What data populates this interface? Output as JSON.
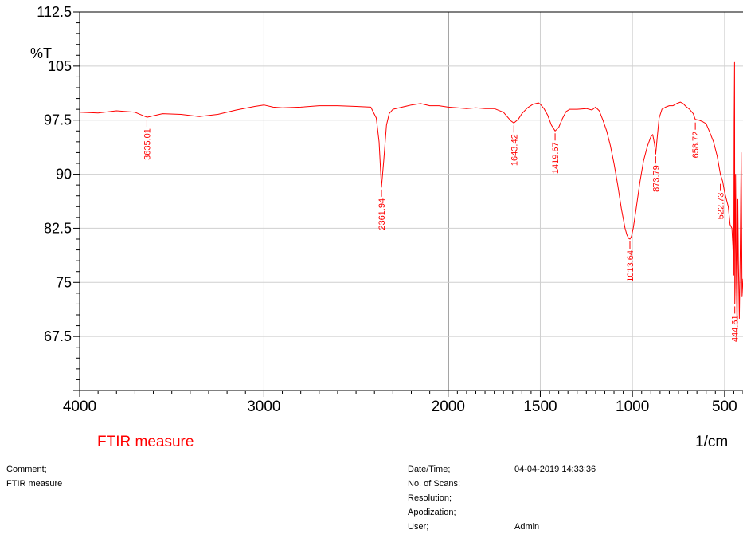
{
  "chart_data": {
    "type": "line",
    "title": "",
    "ylabel": "%T",
    "xlabel": "1/cm",
    "x_reversed": true,
    "xlim": [
      4000,
      400
    ],
    "ylim": [
      60,
      112.5
    ],
    "x_ticks": [
      {
        "value": 4000,
        "label": "4000"
      },
      {
        "value": 3000,
        "label": "3000"
      },
      {
        "value": 2000,
        "label": "2000"
      },
      {
        "value": 1500,
        "label": "1500"
      },
      {
        "value": 1000,
        "label": "1000"
      },
      {
        "value": 500,
        "label": "500"
      }
    ],
    "y_ticks": [
      {
        "value": 112.5,
        "label": "112.5"
      },
      {
        "value": 105,
        "label": "105"
      },
      {
        "value": 97.5,
        "label": "97.5"
      },
      {
        "value": 90,
        "label": "90"
      },
      {
        "value": 82.5,
        "label": "82.5"
      },
      {
        "value": 75,
        "label": "75"
      },
      {
        "value": 67.5,
        "label": "67.5"
      }
    ],
    "series": [
      {
        "name": "FTIR measure",
        "color": "#ff0000",
        "x": [
          4000,
          3900,
          3800,
          3700,
          3635,
          3550,
          3450,
          3350,
          3250,
          3150,
          3050,
          3000,
          2950,
          2900,
          2800,
          2700,
          2600,
          2500,
          2420,
          2390,
          2375,
          2361.94,
          2350,
          2335,
          2320,
          2300,
          2250,
          2200,
          2150,
          2100,
          2050,
          2000,
          1950,
          1900,
          1850,
          1800,
          1750,
          1700,
          1680,
          1660,
          1643.42,
          1620,
          1600,
          1570,
          1540,
          1510,
          1500,
          1480,
          1460,
          1440,
          1419.67,
          1400,
          1380,
          1360,
          1340,
          1300,
          1250,
          1220,
          1200,
          1180,
          1160,
          1140,
          1120,
          1100,
          1080,
          1060,
          1040,
          1030,
          1020,
          1013.64,
          1005,
          995,
          980,
          960,
          940,
          920,
          900,
          890,
          880,
          873.79,
          865,
          855,
          840,
          820,
          800,
          780,
          760,
          740,
          725,
          710,
          690,
          670,
          658.72,
          640,
          620,
          600,
          580,
          560,
          540,
          522.73,
          510,
          500,
          490,
          480,
          470,
          460,
          455,
          450,
          448,
          446,
          444.61,
          443,
          440,
          436,
          432,
          428,
          425,
          420,
          415,
          410,
          405,
          400
        ],
        "y": [
          98.6,
          98.5,
          98.8,
          98.6,
          97.9,
          98.4,
          98.3,
          98.0,
          98.3,
          98.9,
          99.4,
          99.6,
          99.3,
          99.2,
          99.3,
          99.5,
          99.5,
          99.4,
          99.3,
          97.8,
          94.5,
          88.2,
          91.8,
          96.8,
          98.4,
          99.0,
          99.3,
          99.6,
          99.8,
          99.5,
          99.5,
          99.3,
          99.2,
          99.1,
          99.2,
          99.1,
          99.1,
          98.6,
          98.0,
          97.4,
          97.1,
          97.6,
          98.4,
          99.2,
          99.7,
          99.9,
          99.7,
          99.1,
          98.2,
          96.8,
          96.0,
          96.5,
          97.7,
          98.7,
          99.0,
          99.0,
          99.1,
          98.9,
          99.3,
          98.8,
          97.5,
          96.0,
          94.0,
          91.5,
          88.5,
          85.2,
          82.5,
          81.6,
          81.1,
          81.0,
          81.4,
          82.6,
          85.2,
          88.8,
          91.8,
          93.8,
          95.2,
          95.5,
          94.2,
          92.8,
          95.2,
          97.8,
          99.0,
          99.3,
          99.5,
          99.5,
          99.8,
          100.0,
          99.8,
          99.4,
          99.0,
          98.4,
          97.6,
          97.5,
          97.3,
          97.0,
          95.8,
          94.5,
          92.5,
          90.0,
          89.0,
          87.5,
          86.5,
          85.5,
          83.0,
          82.5,
          80.0,
          76.0,
          97.0,
          105.5,
          72.0,
          74.5,
          90.0,
          75.5,
          68.0,
          86.5,
          78.0,
          70.0,
          79.0,
          93.0,
          73.0,
          75.5
        ]
      }
    ],
    "peak_labels": [
      {
        "x": 3635.01,
        "y": 97.9,
        "label": "3635.01"
      },
      {
        "x": 2361.94,
        "y": 88.2,
        "label": "2361.94"
      },
      {
        "x": 1643.42,
        "y": 97.1,
        "label": "1643.42"
      },
      {
        "x": 1419.67,
        "y": 96.0,
        "label": "1419.67"
      },
      {
        "x": 1013.64,
        "y": 81.0,
        "label": "1013.64"
      },
      {
        "x": 873.79,
        "y": 92.8,
        "label": "873.79"
      },
      {
        "x": 658.72,
        "y": 97.5,
        "label": "658.72"
      },
      {
        "x": 522.73,
        "y": 89.0,
        "label": "522.73"
      },
      {
        "x": 444.61,
        "y": 72.0,
        "label": "444.61"
      }
    ],
    "grid": true,
    "legend": "FTIR measure",
    "legend_position": "bottom-left"
  },
  "comment": {
    "label": "Comment;",
    "value": "FTIR measure"
  },
  "info": [
    {
      "label": "Date/Time;",
      "value": "04-04-2019 14:33:36"
    },
    {
      "label": "No. of Scans;",
      "value": ""
    },
    {
      "label": "Resolution;",
      "value": ""
    },
    {
      "label": "Apodization;",
      "value": ""
    },
    {
      "label": "User;",
      "value": "Admin"
    }
  ]
}
